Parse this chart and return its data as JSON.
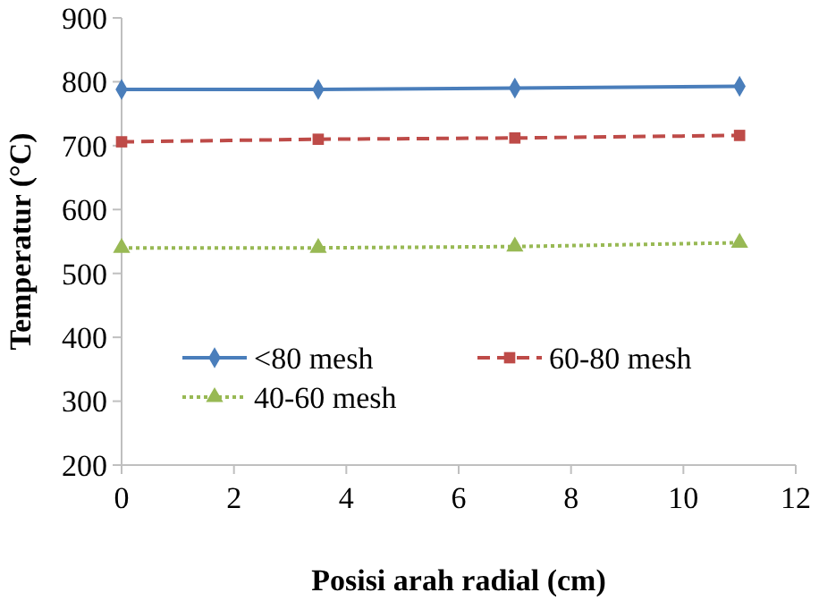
{
  "chart_data": {
    "type": "line",
    "xlabel": "Posisi arah radial (cm)",
    "ylabel": "Temperatur (°C)",
    "x": [
      0,
      3.5,
      7,
      11
    ],
    "series": [
      {
        "name": "<80 mesh",
        "color": "#4a7ebb",
        "values": [
          788,
          788,
          790,
          793
        ],
        "marker": "diamond",
        "line_style": "solid"
      },
      {
        "name": "60-80 mesh",
        "color": "#be4b48",
        "values": [
          706,
          710,
          712,
          716
        ],
        "marker": "square",
        "line_style": "dashed"
      },
      {
        "name": "40-60 mesh",
        "color": "#98b954",
        "values": [
          540,
          540,
          542,
          548
        ],
        "marker": "triangle",
        "line_style": "dotted"
      }
    ],
    "xlim": [
      0,
      12
    ],
    "xticks": [
      0,
      2,
      4,
      6,
      8,
      10,
      12
    ],
    "ylim": [
      200,
      900
    ],
    "yticks": [
      200,
      300,
      400,
      500,
      600,
      700,
      800,
      900
    ],
    "grid": false,
    "legend": "bottom left"
  }
}
